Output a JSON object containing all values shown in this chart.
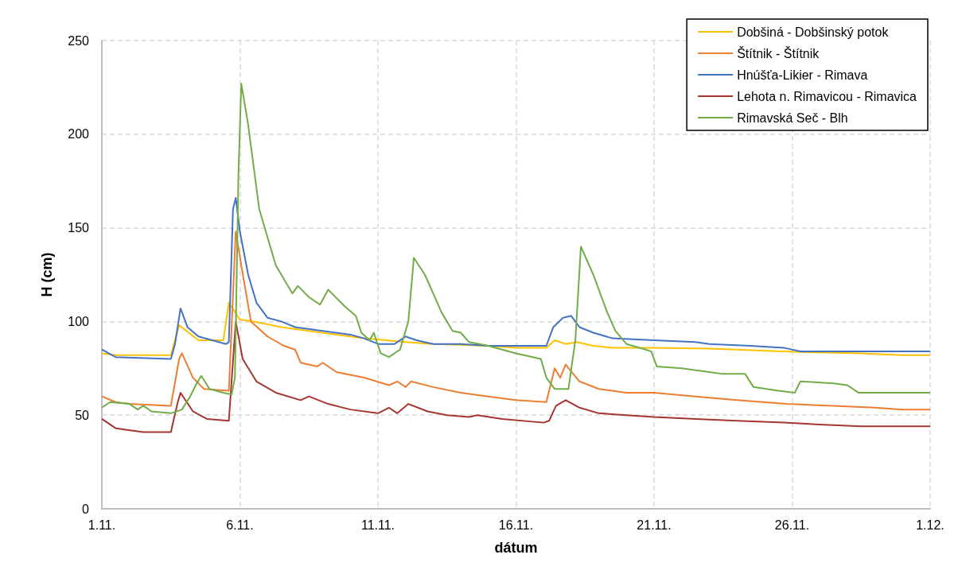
{
  "chart_data": {
    "type": "line",
    "xlabel": "dátum",
    "ylabel": "H (cm)",
    "xlim": [
      "--11-01",
      "--12-01"
    ],
    "xticks": [
      {
        "value": "--11-01",
        "label": "1.11."
      },
      {
        "value": "--11-06",
        "label": "6.11."
      },
      {
        "value": "--11-11",
        "label": "11.11."
      },
      {
        "value": "--11-16",
        "label": "16.11."
      },
      {
        "value": "--11-21",
        "label": "21.11."
      },
      {
        "value": "--11-26",
        "label": "26.11."
      },
      {
        "value": "--12-01",
        "label": "1.12."
      }
    ],
    "ylim": [
      0,
      250
    ],
    "yticks": [
      0,
      50,
      100,
      150,
      200,
      250
    ],
    "grid": true,
    "legend": "top right",
    "marker": "none",
    "line_style": "solid",
    "series": [
      {
        "name": "Dobšiná - Dobšinský potok",
        "color": "#ffc000",
        "x": [
          "--11-01T00:00",
          "--11-01T12:00",
          "--11-03T12:00",
          "--11-03T19:12",
          "--11-04T12:00",
          "--11-05T09:36",
          "--11-05T14:24",
          "--11-06T00:00",
          "--11-06T12:00",
          "--11-07T12:00",
          "--11-08T12:00",
          "--11-09T12:00",
          "--11-10T12:00",
          "--11-11T07:12",
          "--11-12T00:00",
          "--11-13T00:00",
          "--11-14T00:00",
          "--11-15T00:00",
          "--11-16T00:00",
          "--11-17T02:24",
          "--11-17T09:36",
          "--11-17T19:12",
          "--11-18T04:48",
          "--11-18T19:12",
          "--11-19T12:00",
          "--11-21T00:00",
          "--11-23T00:00",
          "--11-24T00:00",
          "--11-25T14:24",
          "--11-27T00:00",
          "--11-28T12:00",
          "--11-30T00:00",
          "--12-01T00:00"
        ],
        "values": [
          83,
          82,
          82,
          98,
          90,
          90,
          110,
          101,
          100,
          97,
          95,
          93,
          91,
          90,
          89,
          88,
          87.5,
          87,
          86,
          86,
          90,
          88,
          89,
          87,
          86,
          86,
          85.5,
          85,
          84,
          83.5,
          83,
          82,
          82
        ]
      },
      {
        "name": "Štítnik - Štítnik",
        "color": "#ed7d31",
        "x": [
          "--11-01T00:00",
          "--11-01T12:00",
          "--11-02T00:00",
          "--11-03T12:00",
          "--11-03T19:12",
          "--11-03T21:36",
          "--11-04T07:12",
          "--11-04T16:48",
          "--11-05T14:24",
          "--11-05T20:24",
          "--11-06T01:12",
          "--11-06T09:36",
          "--11-07T00:00",
          "--11-07T14:24",
          "--11-08T00:00",
          "--11-08T04:48",
          "--11-08T19:12",
          "--11-09T00:00",
          "--11-09T12:00",
          "--11-10T12:00",
          "--11-11T09:36",
          "--11-11T16:48",
          "--11-12T00:00",
          "--11-12T04:48",
          "--11-13T00:00",
          "--11-14T00:00",
          "--11-15T00:00",
          "--11-16T00:00",
          "--11-17T02:24",
          "--11-17T09:36",
          "--11-17T14:24",
          "--11-17T19:12",
          "--11-18T07:12",
          "--11-19T00:00",
          "--11-20T00:00",
          "--11-21T00:00",
          "--11-22T12:00",
          "--11-24T00:00",
          "--11-25T19:12",
          "--11-27T12:00",
          "--11-29T00:00",
          "--11-30T00:00",
          "--12-01T00:00"
        ],
        "values": [
          60,
          57,
          56,
          55,
          80,
          83,
          70,
          64,
          63,
          148,
          130,
          100,
          92,
          87,
          85,
          78,
          76,
          78,
          73,
          70,
          66,
          68,
          65,
          68,
          65,
          62,
          60,
          58,
          57,
          75,
          70,
          77,
          68,
          64,
          62,
          62,
          60,
          58,
          56,
          55,
          54,
          53,
          53
        ]
      },
      {
        "name": "Hnúšťa-Likier - Rimava",
        "color": "#4472c4",
        "x": [
          "--11-01T00:00",
          "--11-01T12:00",
          "--11-03T12:00",
          "--11-03T15:36",
          "--11-03T20:24",
          "--11-04T02:24",
          "--11-04T12:00",
          "--11-05T00:00",
          "--11-05T12:00",
          "--11-05T14:24",
          "--11-05T18:00",
          "--11-05T20:24",
          "--11-06T00:00",
          "--11-06T07:12",
          "--11-06T14:24",
          "--11-07T00:00",
          "--11-07T12:00",
          "--11-08T00:00",
          "--11-09T00:00",
          "--11-10T00:00",
          "--11-10T12:00",
          "--11-11T00:00",
          "--11-11T14:24",
          "--11-12T00:00",
          "--11-12T09:36",
          "--11-13T00:00",
          "--11-14T00:00",
          "--11-15T00:00",
          "--11-17T02:24",
          "--11-17T08:24",
          "--11-17T16:48",
          "--11-18T00:00",
          "--11-18T07:12",
          "--11-18T19:12",
          "--11-19T12:00",
          "--11-21T00:00",
          "--11-22T12:00",
          "--11-23T00:00",
          "--11-24T12:00",
          "--11-25T16:48",
          "--11-26T07:12",
          "--11-29T00:00",
          "--12-01T00:00"
        ],
        "values": [
          85,
          81,
          80,
          88,
          107,
          97,
          92,
          90,
          88,
          89,
          160,
          166,
          148,
          125,
          110,
          102,
          100,
          97,
          95,
          93,
          91,
          88,
          88,
          92,
          90,
          88,
          88,
          87,
          87,
          97,
          102,
          103,
          97,
          94,
          91,
          90,
          89,
          88,
          87,
          86,
          84,
          84,
          84
        ]
      },
      {
        "name": "Lehota n. Rimavicou - Rimavica",
        "color": "#a5362f",
        "x": [
          "--11-01T00:00",
          "--11-01T12:00",
          "--11-02T12:00",
          "--11-03T12:00",
          "--11-03T18:00",
          "--11-03T20:24",
          "--11-04T07:12",
          "--11-04T19:12",
          "--11-05T14:24",
          "--11-05T20:24",
          "--11-06T02:24",
          "--11-06T14:24",
          "--11-07T07:12",
          "--11-08T04:48",
          "--11-08T12:00",
          "--11-09T04:48",
          "--11-10T00:00",
          "--11-11T00:00",
          "--11-11T09:36",
          "--11-11T16:48",
          "--11-12T02:24",
          "--11-12T19:12",
          "--11-13T12:00",
          "--11-14T07:12",
          "--11-14T14:24",
          "--11-15T12:00",
          "--11-17T00:00",
          "--11-17T04:48",
          "--11-17T10:48",
          "--11-17T19:12",
          "--11-18T07:12",
          "--11-19T00:00",
          "--11-20T00:00",
          "--11-21T00:00",
          "--11-22T12:00",
          "--11-24T00:00",
          "--11-25T16:48",
          "--11-27T00:00",
          "--11-28T12:00",
          "--12-01T00:00"
        ],
        "values": [
          48,
          43,
          41,
          41,
          57,
          62,
          52,
          48,
          47,
          100,
          80,
          68,
          62,
          58,
          60,
          56,
          53,
          51,
          54,
          51,
          56,
          52,
          50,
          49,
          50,
          48,
          46,
          47,
          55,
          58,
          54,
          51,
          50,
          49,
          48,
          47,
          46,
          45,
          44,
          44
        ]
      },
      {
        "name": "Rimavská Seč - Blh",
        "color": "#70ad47",
        "x": [
          "--11-01T00:00",
          "--11-01T07:12",
          "--11-02T00:00",
          "--11-02T07:12",
          "--11-02T12:00",
          "--11-02T19:12",
          "--11-03T12:00",
          "--11-03T21:36",
          "--11-04T04:48",
          "--11-04T09:36",
          "--11-04T14:24",
          "--11-04T21:36",
          "--11-05T09:36",
          "--11-05T16:48",
          "--11-05T19:41",
          "--11-05T22:48",
          "--11-06T01:12",
          "--11-06T07:12",
          "--11-06T16:48",
          "--11-07T07:12",
          "--11-07T21:36",
          "--11-08T02:24",
          "--11-08T12:00",
          "--11-08T21:36",
          "--11-09T04:48",
          "--11-09T19:12",
          "--11-10T04:48",
          "--11-10T09:36",
          "--11-10T16:48",
          "--11-10T20:24",
          "--11-11T02:24",
          "--11-11T09:36",
          "--11-11T19:12",
          "--11-12T02:24",
          "--11-12T07:12",
          "--11-12T16:48",
          "--11-13T07:12",
          "--11-13T16:48",
          "--11-14T00:00",
          "--11-14T07:12",
          "--11-15T00:00",
          "--11-16T00:00",
          "--11-16T21:36",
          "--11-17T02:24",
          "--11-17T09:36",
          "--11-17T21:36",
          "--11-18T03:36",
          "--11-18T08:24",
          "--11-18T19:12",
          "--11-19T07:12",
          "--11-19T14:24",
          "--11-20T00:00",
          "--11-20T16:48",
          "--11-20T21:36",
          "--11-21T02:24",
          "--11-22T00:00",
          "--11-23T00:00",
          "--11-23T12:00",
          "--11-24T07:12",
          "--11-24T14:24",
          "--11-25T12:00",
          "--11-26T02:24",
          "--11-26T07:12",
          "--11-27T12:00",
          "--11-28T00:00",
          "--11-28T09:36",
          "--12-01T00:00"
        ],
        "values": [
          54,
          57,
          56,
          53,
          55,
          52,
          51,
          53,
          60,
          66,
          71,
          64,
          62,
          61,
          70,
          180,
          227,
          205,
          160,
          130,
          115,
          119,
          113,
          109,
          117,
          108,
          103,
          94,
          90,
          94,
          83,
          81,
          85,
          100,
          134,
          125,
          105,
          95,
          94,
          89,
          87,
          83,
          80,
          70,
          64,
          64,
          90,
          140,
          125,
          105,
          95,
          88,
          85,
          84,
          76,
          75,
          73,
          72,
          72,
          65,
          63,
          62,
          68,
          67,
          66,
          62,
          62
        ]
      }
    ]
  }
}
